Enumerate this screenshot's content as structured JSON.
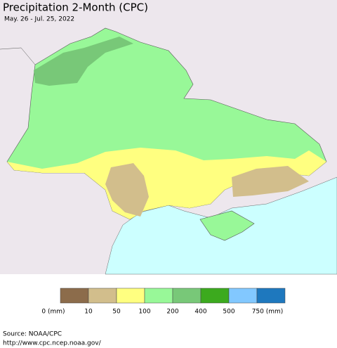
{
  "title": "Precipitation 2-Month (CPC)",
  "subtitle": "May. 26 - Jul. 25, 2022",
  "legend": {
    "colors": [
      "#8c6c4b",
      "#d2be8c",
      "#ffff80",
      "#98f898",
      "#78c878",
      "#3caa1e",
      "#82c8ff",
      "#1e78be"
    ],
    "labels": [
      "0 (mm)",
      "10",
      "50",
      "100",
      "200",
      "400",
      "500",
      "750 (mm)"
    ]
  },
  "source": {
    "line1": "Source: NOAA/CPC",
    "line2": "http://www.cpc.ncep.noaa.gov/"
  }
}
